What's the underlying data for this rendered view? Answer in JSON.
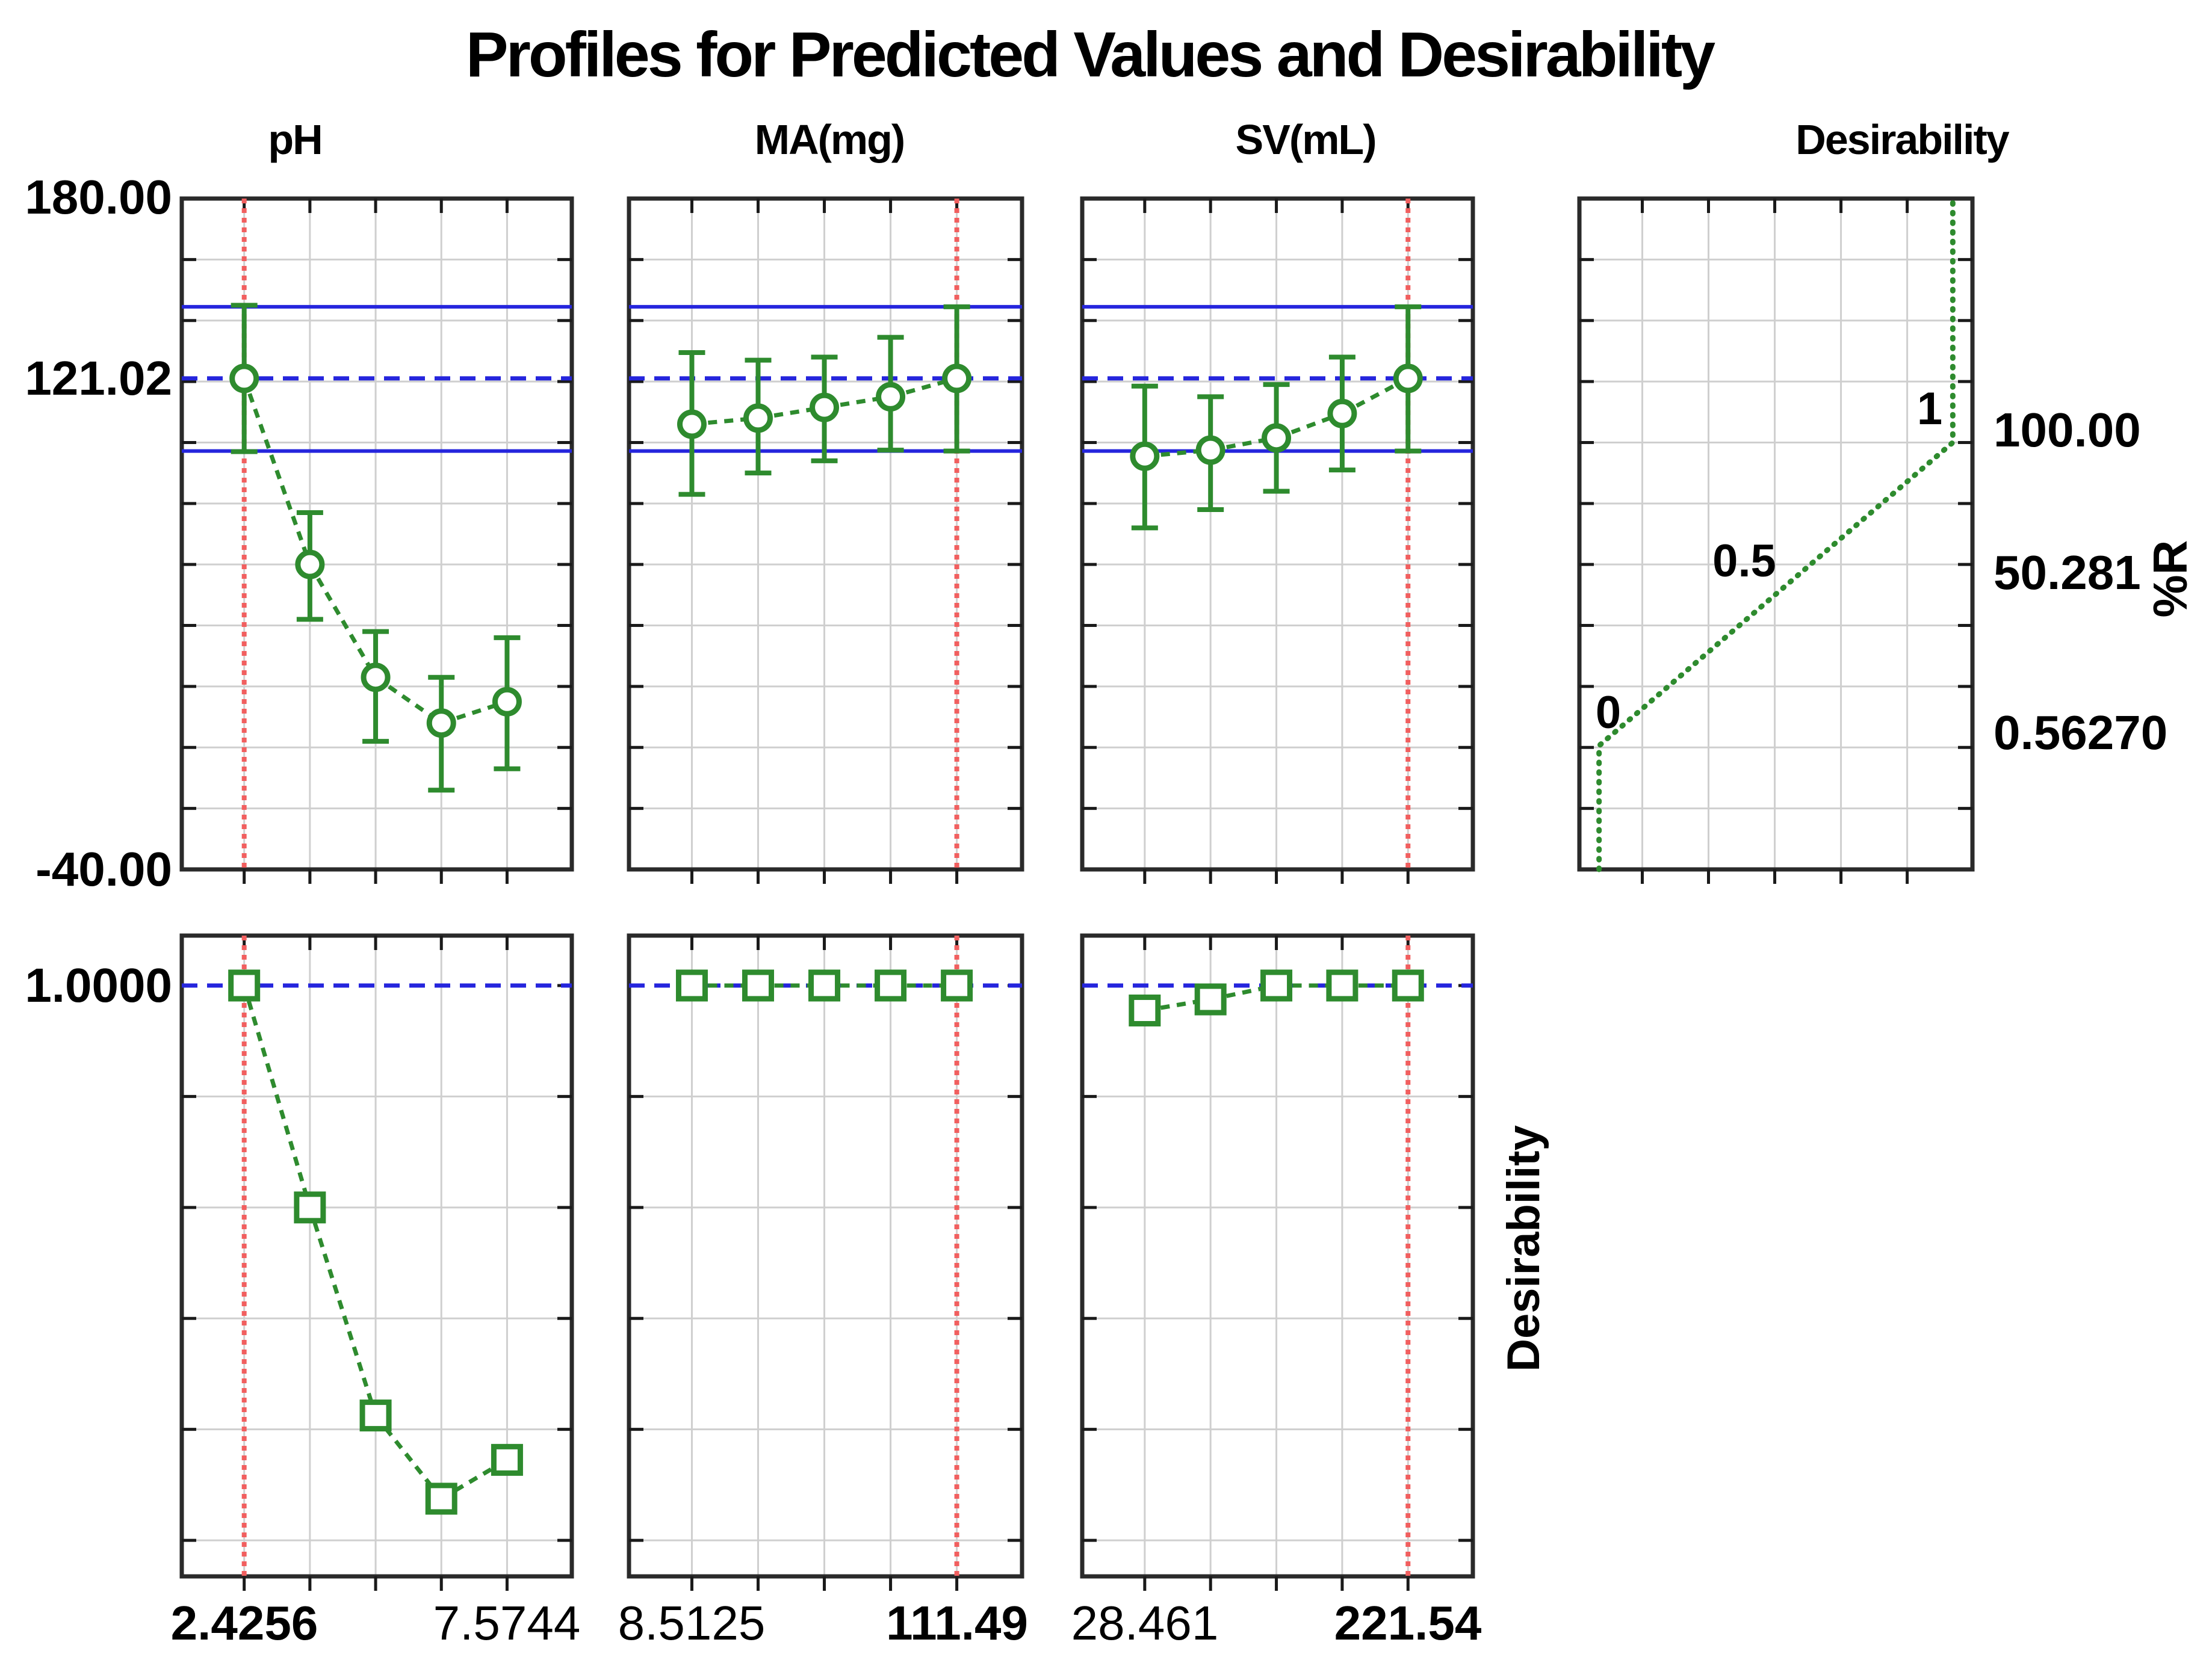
{
  "title": "Profiles for Predicted Values and Desirability",
  "headers": {
    "col1": "pH",
    "col2": "MA(mg)",
    "col3": "SV(mL)",
    "col4": "Desirability"
  },
  "left_axis": {
    "top": "180.00",
    "ref": "121.02",
    "bottom": "-40.00",
    "des_one": "1.0000"
  },
  "right_axis": {
    "v100": "100.00",
    "v50": "50.281",
    "v0": "0.56270"
  },
  "rotated_labels": {
    "response": "%R",
    "desirability": "Desirability"
  },
  "x_axis": {
    "ph_min": "2.4256",
    "ph_max": "7.5744",
    "ma_min": "8.5125",
    "ma_max": "111.49",
    "sv_min": "28.461",
    "sv_max": "221.54"
  },
  "colors": {
    "green": "#2e8b2e",
    "blue": "#2525dd",
    "red": "#f15f5f",
    "grid": "#cfcfcf",
    "border": "#2a2a2a",
    "tick": "#1a1a1a",
    "text": "#000000"
  },
  "chart_data": {
    "type": "line",
    "subtype": "prediction-desirability-profiler",
    "title": "Profiles for Predicted Values and Desirability",
    "response": {
      "name": "%R",
      "axis_min": -40,
      "axis_max": 180,
      "grid_step": 20,
      "predicted": 121.02,
      "ci_low_line": 97.2,
      "ci_high_line": 144.5
    },
    "desirability_axis": {
      "min": 0,
      "max": 1,
      "grid_values": [
        0,
        0.2,
        0.4,
        0.6,
        0.8,
        1.0
      ]
    },
    "desirability_function": {
      "d": [
        0,
        1
      ],
      "response_value": [
        0.5627,
        100.0
      ],
      "point_labels": [
        "0",
        "0.5",
        "1"
      ],
      "right_labels": [
        "100.00",
        "50.281",
        "0.56270"
      ]
    },
    "factors": [
      {
        "name": "pH",
        "levels_shown": [
          "2.4256",
          "7.5744"
        ],
        "current_level": "2.4256",
        "current_index": 0,
        "predicted": [
          121.02,
          60,
          23,
          8,
          15
        ],
        "ci_low": [
          97,
          42,
          2,
          -14,
          -7
        ],
        "ci_high": [
          145,
          77,
          38,
          23,
          36
        ],
        "desirability": [
          1.0,
          0.6,
          0.225,
          0.075,
          0.145
        ]
      },
      {
        "name": "MA(mg)",
        "levels_shown": [
          "8.5125",
          "111.49"
        ],
        "current_level": "111.49",
        "current_index": 4,
        "predicted": [
          106,
          108,
          111.5,
          115,
          121.02
        ],
        "ci_low": [
          83,
          90,
          94,
          97.5,
          97.2
        ],
        "ci_high": [
          129.5,
          127,
          128,
          134.5,
          144.5
        ],
        "desirability": [
          1.0,
          1.0,
          1.0,
          1.0,
          1.0
        ]
      },
      {
        "name": "SV(mL)",
        "levels_shown": [
          "28.461",
          "221.54"
        ],
        "current_level": "221.54",
        "current_index": 4,
        "predicted": [
          95.5,
          97.5,
          101.5,
          109.5,
          121.02
        ],
        "ci_low": [
          72,
          78,
          84,
          91,
          97.2
        ],
        "ci_high": [
          118.5,
          115,
          119,
          128,
          144.5
        ],
        "desirability": [
          0.955,
          0.975,
          1.0,
          1.0,
          1.0
        ]
      }
    ]
  }
}
